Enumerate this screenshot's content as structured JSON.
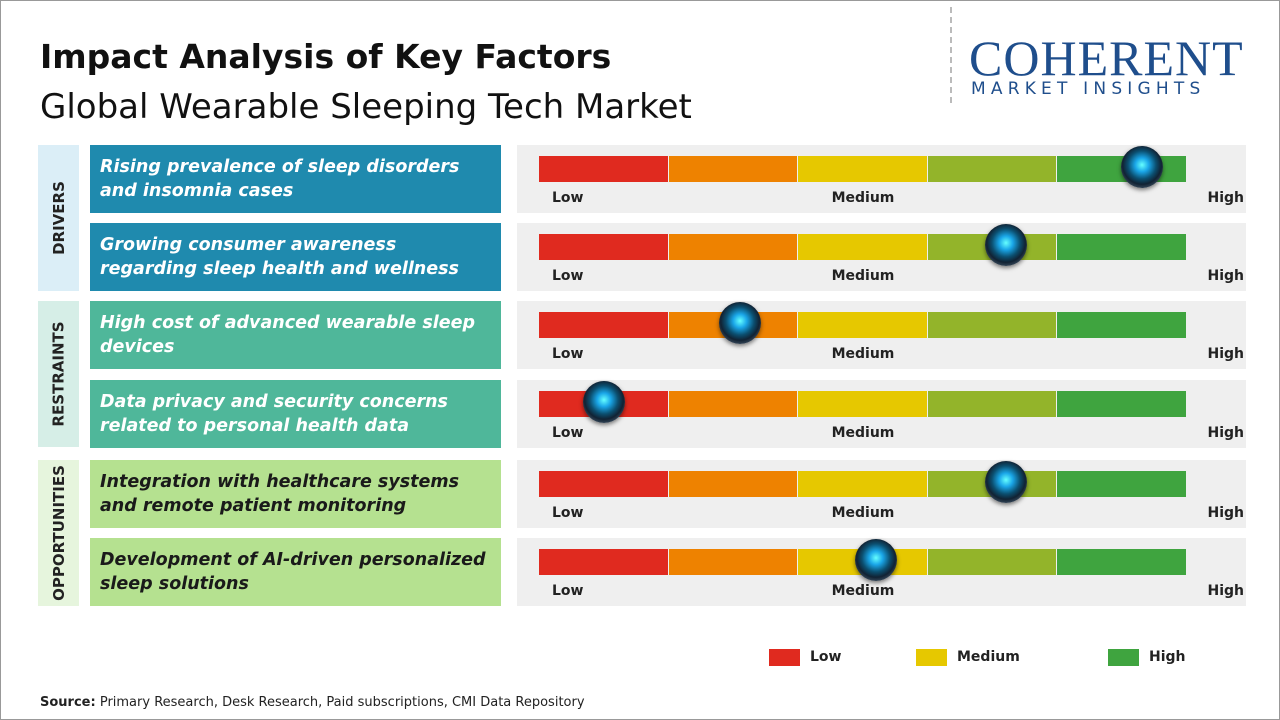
{
  "header": {
    "title": "Impact Analysis of Key Factors",
    "subtitle": "Global Wearable Sleeping Tech Market"
  },
  "logo": {
    "name": "COHERENT",
    "tagline": "MARKET INSIGHTS"
  },
  "impact_lim": [
    0,
    100
  ],
  "scale_labels": [
    "Low",
    "Medium",
    "High"
  ],
  "scale_colors": [
    "#e02a1f",
    "#ee8200",
    "#e6c800",
    "#93b42a",
    "#3fa43f"
  ],
  "groups": [
    {
      "label": "DRIVERS",
      "box_color": "#dbeef7",
      "factor_color": "#1f8aae",
      "text_color": "#ffffff",
      "factors": [
        {
          "text": "Rising prevalence of sleep disorders and insomnia cases",
          "impact": 93
        },
        {
          "text": "Growing consumer awareness regarding sleep health and wellness",
          "impact": 72
        }
      ]
    },
    {
      "label": "RESTRAINTS",
      "box_color": "#d6eee7",
      "factor_color": "#4fb79a",
      "text_color": "#ffffff",
      "factors": [
        {
          "text": "High cost of advanced wearable sleep devices",
          "impact": 31
        },
        {
          "text": "Data privacy and security concerns related to personal health data",
          "impact": 10
        }
      ]
    },
    {
      "label": "OPPORTUNITIES",
      "box_color": "#e6f5dd",
      "factor_color": "#b5e190",
      "text_color": "#1a1a1a",
      "factors": [
        {
          "text": "Integration with healthcare systems and remote patient monitoring",
          "impact": 72
        },
        {
          "text": "Development of AI-driven personalized sleep solutions",
          "impact": 52
        }
      ]
    }
  ],
  "legend": [
    {
      "label": "Low",
      "color": "#e02a1f"
    },
    {
      "label": "Medium",
      "color": "#e6c800"
    },
    {
      "label": "High",
      "color": "#3fa43f"
    }
  ],
  "source": {
    "label": "Source:",
    "text": "Primary Research, Desk Research, Paid subscriptions, CMI Data Repository"
  }
}
